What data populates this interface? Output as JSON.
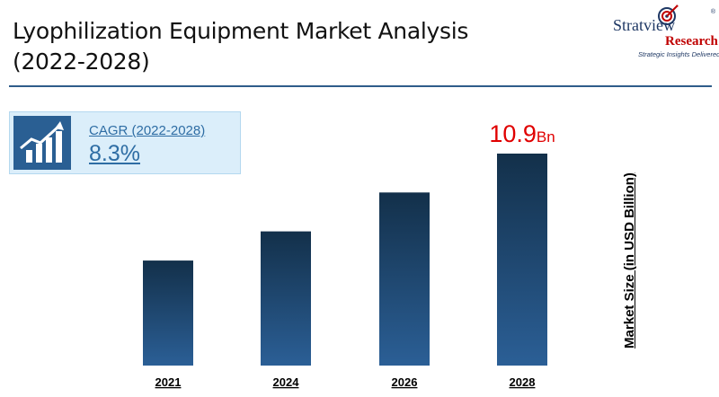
{
  "title": "Lyophilization Equipment Market Analysis (2022-2028)",
  "logo": {
    "name": "Stratview",
    "registered": "®",
    "research": "Research",
    "tagline": "Strategic Insights Delivered",
    "icon": "target-arrow-icon"
  },
  "cagr": {
    "label": "CAGR (2022-2028)",
    "value": "8.3%",
    "icon": "growth-chart-icon"
  },
  "colors": {
    "bar_top": "#13304a",
    "bar_bottom": "#2b5f96",
    "highlight": "#e00000",
    "divider": "#2e5c8a"
  },
  "chart_data": {
    "type": "bar",
    "categories": [
      "2021",
      "2024",
      "2026",
      "2028"
    ],
    "values": [
      5.4,
      6.9,
      8.9,
      10.9
    ],
    "ylabel": "Market Size (in USD Billion)",
    "annotation": {
      "category": "2028",
      "value": "10.9",
      "unit": "Bn"
    },
    "ylim": [
      0,
      10.9
    ],
    "grid": false,
    "y_axis_ticks_shown": false
  }
}
